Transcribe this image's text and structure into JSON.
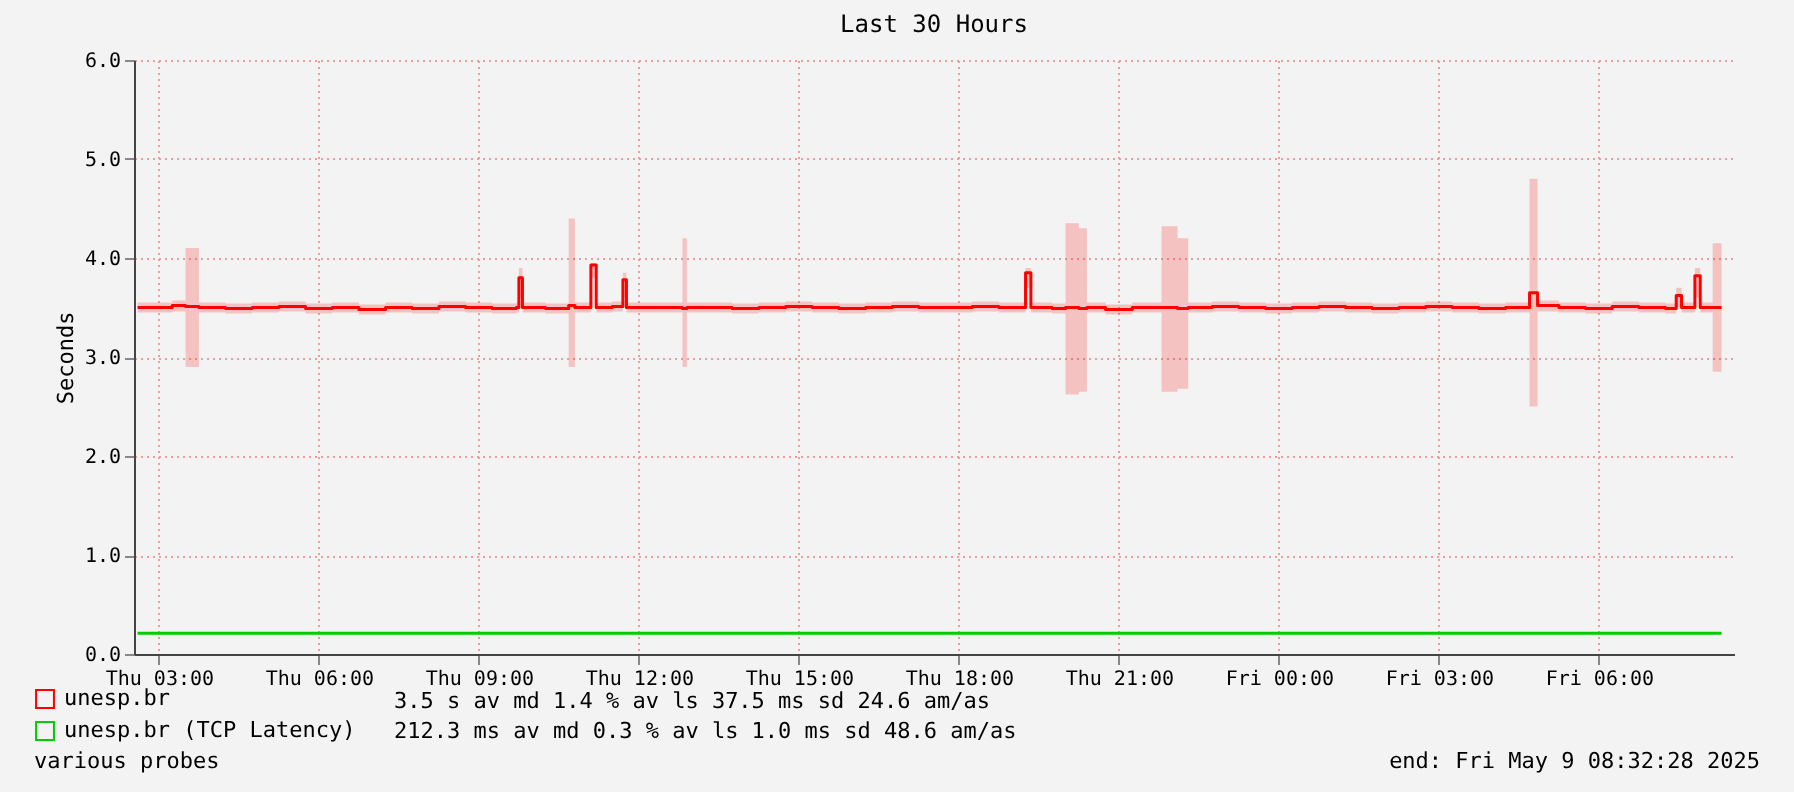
{
  "chart_data": {
    "type": "step",
    "title": "Last 30 Hours",
    "ylabel": "Seconds",
    "xlim": [
      "2025-05-08T02:32",
      "2025-05-09T08:32"
    ],
    "xticks": [
      {
        "value": "2025-05-08T03:00",
        "label": "Thu 03:00"
      },
      {
        "value": "2025-05-08T06:00",
        "label": "Thu 06:00"
      },
      {
        "value": "2025-05-08T09:00",
        "label": "Thu 09:00"
      },
      {
        "value": "2025-05-08T12:00",
        "label": "Thu 12:00"
      },
      {
        "value": "2025-05-08T15:00",
        "label": "Thu 15:00"
      },
      {
        "value": "2025-05-08T18:00",
        "label": "Thu 18:00"
      },
      {
        "value": "2025-05-08T21:00",
        "label": "Thu 21:00"
      },
      {
        "value": "2025-05-09T00:00",
        "label": "Fri 00:00"
      },
      {
        "value": "2025-05-09T03:00",
        "label": "Fri 03:00"
      },
      {
        "value": "2025-05-09T06:00",
        "label": "Fri 06:00"
      }
    ],
    "ylim": [
      0,
      6
    ],
    "yticks": [
      {
        "value": 0,
        "label": "0.0"
      },
      {
        "value": 1,
        "label": "1.0"
      },
      {
        "value": 2,
        "label": "2.0"
      },
      {
        "value": 3,
        "label": "3.0"
      },
      {
        "value": 4,
        "label": "4.0"
      },
      {
        "value": 5,
        "label": "5.0"
      },
      {
        "value": 6,
        "label": "6.0"
      }
    ],
    "grid": true,
    "legend": "bottom left",
    "series": [
      {
        "name": "unesp.br",
        "color": "#ff0000",
        "x": [
          "2025-05-08T02:36",
          "2025-05-08T03:15",
          "2025-05-08T03:30",
          "2025-05-08T03:45",
          "2025-05-08T04:15",
          "2025-05-08T04:45",
          "2025-05-08T05:15",
          "2025-05-08T05:45",
          "2025-05-08T06:15",
          "2025-05-08T06:45",
          "2025-05-08T07:15",
          "2025-05-08T07:45",
          "2025-05-08T08:15",
          "2025-05-08T08:45",
          "2025-05-08T09:15",
          "2025-05-08T09:42",
          "2025-05-08T09:45",
          "2025-05-08T09:49",
          "2025-05-08T10:15",
          "2025-05-08T10:41",
          "2025-05-08T10:48",
          "2025-05-08T11:06",
          "2025-05-08T11:12",
          "2025-05-08T11:30",
          "2025-05-08T11:42",
          "2025-05-08T11:46",
          "2025-05-08T12:15",
          "2025-05-08T12:49",
          "2025-05-08T12:54",
          "2025-05-08T13:15",
          "2025-05-08T13:45",
          "2025-05-08T14:15",
          "2025-05-08T14:45",
          "2025-05-08T15:15",
          "2025-05-08T15:45",
          "2025-05-08T16:15",
          "2025-05-08T16:45",
          "2025-05-08T17:15",
          "2025-05-08T17:45",
          "2025-05-08T18:15",
          "2025-05-08T18:45",
          "2025-05-08T19:15",
          "2025-05-08T19:21",
          "2025-05-08T19:45",
          "2025-05-08T20:00",
          "2025-05-08T20:15",
          "2025-05-08T20:24",
          "2025-05-08T20:45",
          "2025-05-08T21:15",
          "2025-05-08T21:48",
          "2025-05-08T22:06",
          "2025-05-08T22:18",
          "2025-05-08T22:45",
          "2025-05-08T23:15",
          "2025-05-08T23:45",
          "2025-05-09T00:15",
          "2025-05-09T00:45",
          "2025-05-09T01:15",
          "2025-05-09T01:45",
          "2025-05-09T02:15",
          "2025-05-09T02:45",
          "2025-05-09T03:15",
          "2025-05-09T03:45",
          "2025-05-09T04:15",
          "2025-05-09T04:42",
          "2025-05-09T04:51",
          "2025-05-09T05:15",
          "2025-05-09T05:45",
          "2025-05-09T06:15",
          "2025-05-09T06:45",
          "2025-05-09T07:15",
          "2025-05-09T07:27",
          "2025-05-09T07:33",
          "2025-05-09T07:48",
          "2025-05-09T07:54",
          "2025-05-09T08:08",
          "2025-05-09T08:18"
        ],
        "values": [
          3.5,
          3.52,
          3.51,
          3.5,
          3.49,
          3.5,
          3.51,
          3.49,
          3.5,
          3.48,
          3.5,
          3.49,
          3.51,
          3.5,
          3.49,
          3.5,
          3.8,
          3.5,
          3.49,
          3.52,
          3.5,
          3.93,
          3.5,
          3.51,
          3.78,
          3.5,
          3.5,
          3.49,
          3.5,
          3.5,
          3.49,
          3.5,
          3.51,
          3.5,
          3.49,
          3.5,
          3.51,
          3.5,
          3.5,
          3.51,
          3.5,
          3.85,
          3.5,
          3.49,
          3.5,
          3.49,
          3.5,
          3.48,
          3.5,
          3.5,
          3.49,
          3.5,
          3.51,
          3.5,
          3.49,
          3.5,
          3.51,
          3.5,
          3.49,
          3.5,
          3.51,
          3.5,
          3.49,
          3.5,
          3.65,
          3.52,
          3.5,
          3.49,
          3.51,
          3.5,
          3.49,
          3.62,
          3.5,
          3.82,
          3.5,
          3.5,
          3.5
        ],
        "lower": [
          3.45,
          3.46,
          2.9,
          3.45,
          3.44,
          3.45,
          3.46,
          3.44,
          3.45,
          3.43,
          3.45,
          3.44,
          3.46,
          3.45,
          3.44,
          3.45,
          3.6,
          3.45,
          3.44,
          2.9,
          3.45,
          3.8,
          3.45,
          3.46,
          3.6,
          3.45,
          3.45,
          2.9,
          3.45,
          3.45,
          3.44,
          3.45,
          3.46,
          3.45,
          3.44,
          3.45,
          3.46,
          3.45,
          3.45,
          3.46,
          3.45,
          3.7,
          3.45,
          3.44,
          2.62,
          2.65,
          3.45,
          3.43,
          3.45,
          2.65,
          2.68,
          3.45,
          3.46,
          3.45,
          3.44,
          3.45,
          3.46,
          3.45,
          3.44,
          3.45,
          3.46,
          3.45,
          3.44,
          3.45,
          2.5,
          3.46,
          3.45,
          3.44,
          3.46,
          3.45,
          3.44,
          3.5,
          3.45,
          3.6,
          3.45,
          2.85,
          3.45
        ],
        "upper": [
          3.55,
          3.57,
          4.1,
          3.55,
          3.54,
          3.55,
          3.56,
          3.54,
          3.55,
          3.53,
          3.55,
          3.54,
          3.56,
          3.55,
          3.54,
          3.55,
          3.9,
          3.55,
          3.54,
          4.4,
          3.55,
          3.95,
          3.55,
          3.56,
          3.85,
          3.55,
          3.55,
          4.2,
          3.55,
          3.55,
          3.54,
          3.55,
          3.56,
          3.55,
          3.54,
          3.55,
          3.56,
          3.55,
          3.55,
          3.56,
          3.55,
          3.9,
          3.55,
          3.54,
          4.35,
          4.3,
          3.55,
          3.53,
          3.55,
          4.32,
          4.2,
          3.55,
          3.56,
          3.55,
          3.54,
          3.55,
          3.56,
          3.55,
          3.54,
          3.55,
          3.56,
          3.55,
          3.54,
          3.55,
          4.8,
          3.57,
          3.55,
          3.54,
          3.56,
          3.55,
          3.54,
          3.7,
          3.55,
          3.9,
          3.55,
          4.15,
          3.55
        ]
      },
      {
        "name": "unesp.br (TCP Latency)",
        "color": "#00cc00",
        "x": [
          "2025-05-08T02:36",
          "2025-05-08T08:00",
          "2025-05-08T14:00",
          "2025-05-08T20:00",
          "2025-05-09T02:00",
          "2025-05-09T08:18"
        ],
        "values": [
          0.21,
          0.21,
          0.21,
          0.21,
          0.21,
          0.21
        ]
      }
    ],
    "annotations": [
      "3.5   s av md      1.4 % av ls   37.5 ms sd   24.6   am/as",
      "212.3 ms av md      0.3 % av ls    1.0 ms sd   48.6   am/as",
      "various probes",
      "end: Fri May  9 08:32:28 2025"
    ]
  }
}
